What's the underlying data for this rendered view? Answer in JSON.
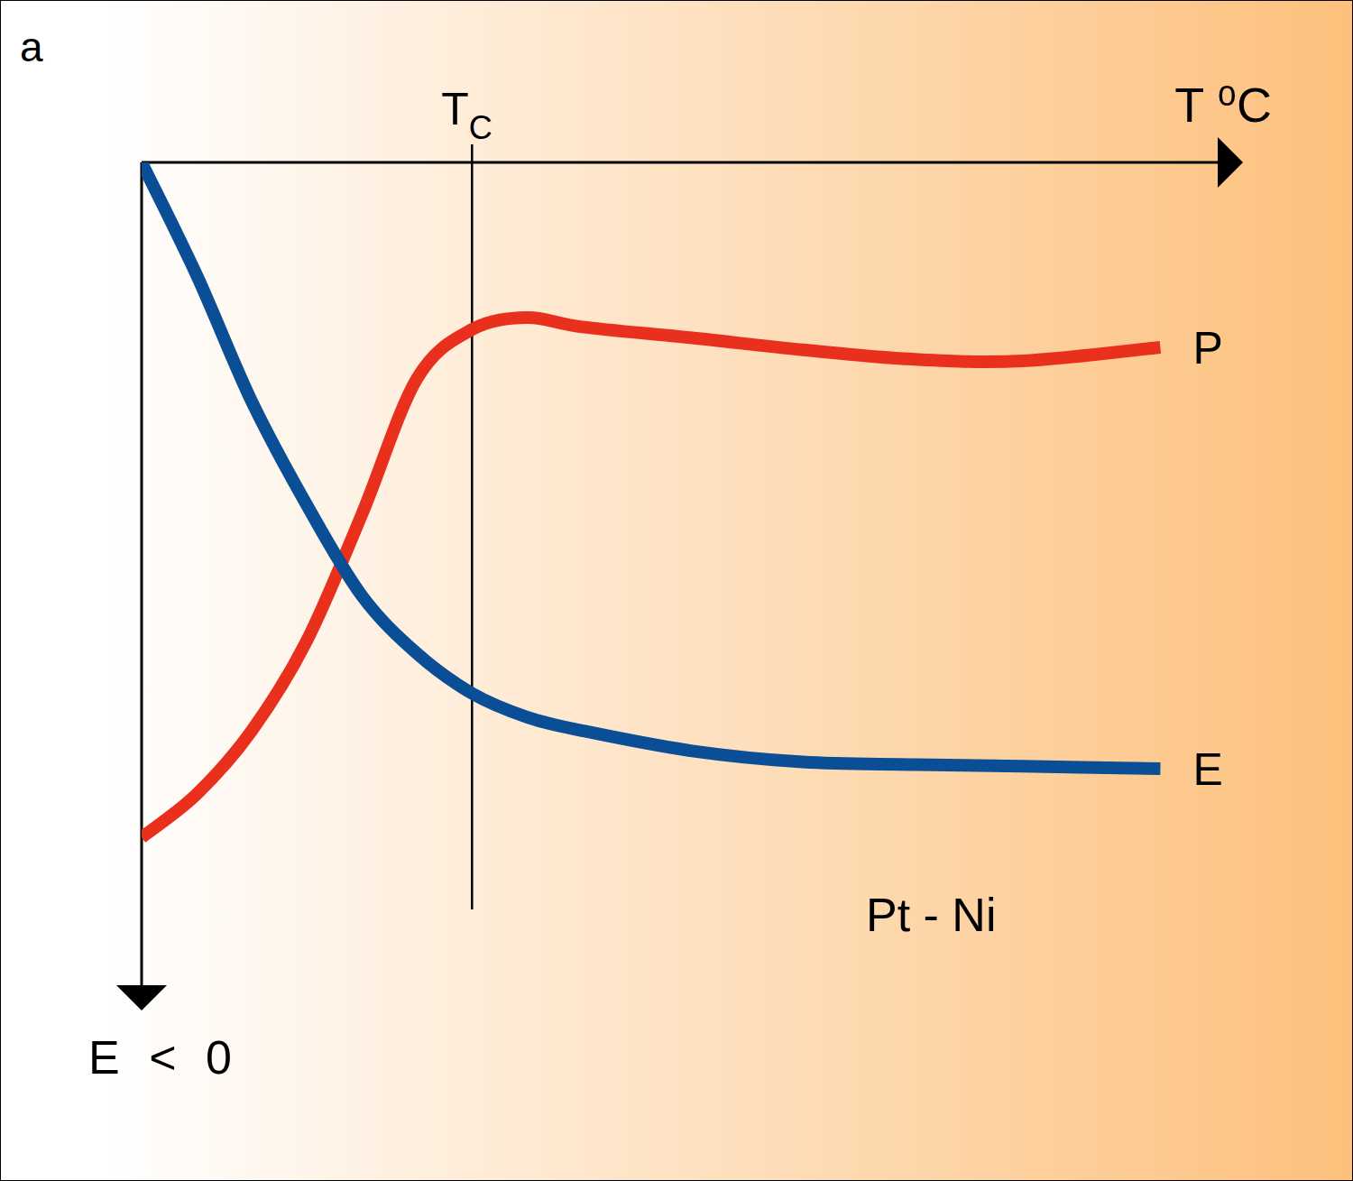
{
  "chart_data": {
    "type": "line",
    "title": "a",
    "x_label": "T ⁰C",
    "y_label": "E < 0",
    "xlim": [
      0,
      100
    ],
    "ylim": [
      0,
      -100
    ],
    "tick_labels": false,
    "grid": false,
    "x": [
      0,
      5,
      10,
      15,
      20,
      25,
      30,
      35,
      40,
      50,
      60,
      70,
      80,
      92.5
    ],
    "series": [
      {
        "name": "P",
        "color": "#e8301c",
        "values": [
          -79.6,
          -74.5,
          -67.0,
          -56.4,
          -41.5,
          -25.5,
          -19.7,
          -18.3,
          -19.4,
          -20.7,
          -22.1,
          -23.2,
          -23.4,
          -21.8
        ]
      },
      {
        "name": "E",
        "color": "#0a4f96",
        "values": [
          0,
          -13.3,
          -28.2,
          -40.4,
          -51.1,
          -57.9,
          -62.6,
          -65.4,
          -67.0,
          -69.4,
          -70.7,
          -71.0,
          -71.2,
          -71.5
        ]
      }
    ],
    "annotations": [
      {
        "text": "T",
        "subscript": "C",
        "x": 30
      },
      {
        "text": "Pt - Ni"
      }
    ]
  }
}
